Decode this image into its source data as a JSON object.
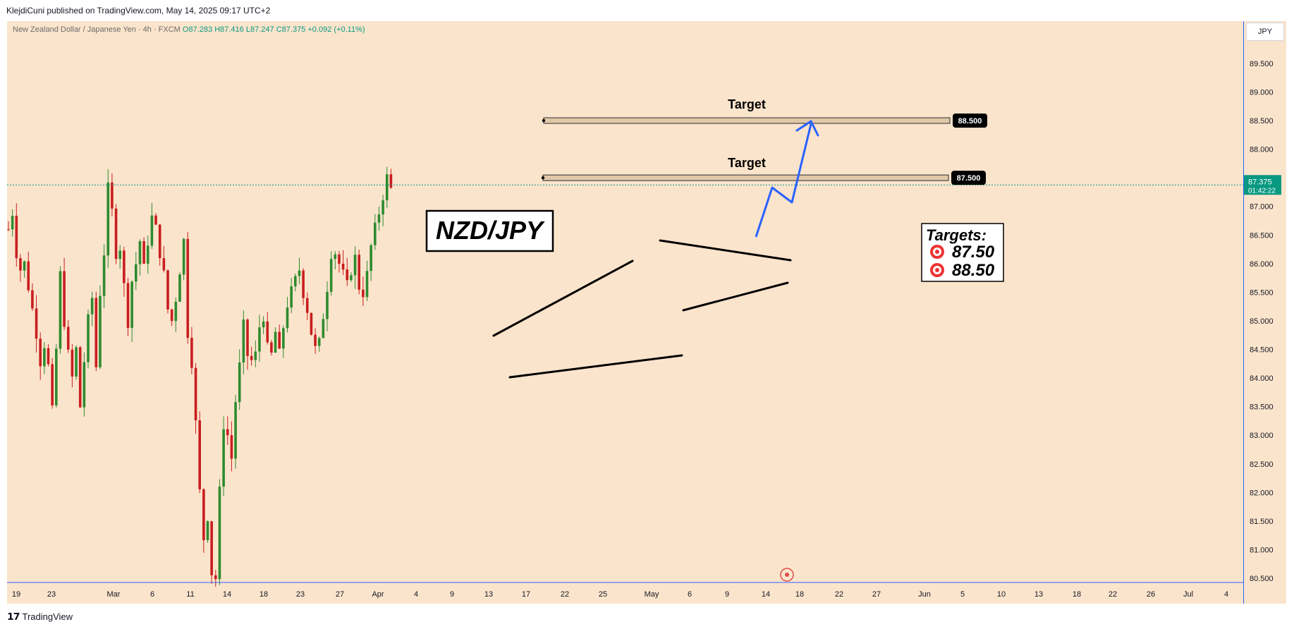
{
  "header": {
    "published": "KlejdiCuni published on TradingView.com, May 14, 2025 09:17 UTC+2"
  },
  "legend": {
    "symbol": "New Zealand Dollar / Japanese Yen · 4h · FXCM",
    "o_label": "O",
    "o": "87.283",
    "h_label": "H",
    "h": "87.416",
    "l_label": "L",
    "l": "87.247",
    "c_label": "C",
    "c": "87.375",
    "change": "+0.092 (+0.11%)"
  },
  "price_axis": {
    "currency": "JPY",
    "current_price": "87.375",
    "countdown": "01:42:22"
  },
  "annotations": {
    "title": "NZD/JPY",
    "target_label": "Target",
    "targets_header": "Targets:",
    "target_1": "87.50",
    "target_2": "88.50",
    "target_1_tag": "87.500",
    "target_2_tag": "88.500"
  },
  "footer": {
    "brand": "TradingView"
  },
  "colors": {
    "background": "#fbe4cc",
    "up_candle": "#2e8b2e",
    "down_candle": "#c81e1e",
    "projection": "#2962ff",
    "current_price": "#089981"
  },
  "chart_data": {
    "type": "candlestick",
    "title": "NZD/JPY",
    "symbol": "New Zealand Dollar / Japanese Yen",
    "timeframe": "4h",
    "ylim": [
      80.3,
      90.1
    ],
    "y_ticks": [
      "89.500",
      "89.000",
      "88.500",
      "88.000",
      "87.500",
      "87.000",
      "86.500",
      "86.000",
      "85.500",
      "85.000",
      "84.500",
      "84.000",
      "83.500",
      "83.000",
      "82.500",
      "82.000",
      "81.500",
      "81.000",
      "80.500"
    ],
    "x_ticks": [
      "19",
      "23",
      "Mar",
      "6",
      "11",
      "14",
      "18",
      "23",
      "27",
      "Apr",
      "4",
      "9",
      "13",
      "17",
      "22",
      "25",
      "May",
      "6",
      "9",
      "14",
      "18",
      "22",
      "27",
      "Jun",
      "5",
      "10",
      "13",
      "18",
      "22",
      "26",
      "Jul",
      "4"
    ],
    "price_path": [
      [
        0,
        86.6
      ],
      [
        3,
        86.9
      ],
      [
        6,
        86.2
      ],
      [
        8,
        85.9
      ],
      [
        10,
        86.0
      ],
      [
        12,
        85.6
      ],
      [
        14,
        85.2
      ],
      [
        16,
        84.8
      ],
      [
        18,
        84.3
      ],
      [
        20,
        84.6
      ],
      [
        22,
        84.2
      ],
      [
        24,
        83.4
      ],
      [
        26,
        84.5
      ],
      [
        28,
        85.8
      ],
      [
        30,
        85.0
      ],
      [
        32,
        84.4
      ],
      [
        34,
        84.0
      ],
      [
        36,
        84.5
      ],
      [
        38,
        83.5
      ],
      [
        40,
        84.3
      ],
      [
        42,
        85.0
      ],
      [
        44,
        85.4
      ],
      [
        46,
        84.2
      ],
      [
        48,
        85.5
      ],
      [
        50,
        86.2
      ],
      [
        52,
        87.3
      ],
      [
        54,
        86.9
      ],
      [
        56,
        86.2
      ],
      [
        58,
        86.3
      ],
      [
        60,
        85.6
      ],
      [
        62,
        85.0
      ],
      [
        64,
        85.7
      ],
      [
        66,
        86.0
      ],
      [
        68,
        86.4
      ],
      [
        70,
        85.9
      ],
      [
        72,
        86.4
      ],
      [
        74,
        86.8
      ],
      [
        76,
        86.6
      ],
      [
        78,
        86.2
      ],
      [
        80,
        85.8
      ],
      [
        82,
        85.2
      ],
      [
        84,
        85.0
      ],
      [
        86,
        85.4
      ],
      [
        88,
        85.9
      ],
      [
        90,
        86.4
      ],
      [
        92,
        84.8
      ],
      [
        94,
        84.3
      ],
      [
        96,
        83.2
      ],
      [
        98,
        82.0
      ],
      [
        100,
        81.2
      ],
      [
        102,
        81.6
      ],
      [
        104,
        80.6
      ],
      [
        106,
        80.5
      ],
      [
        108,
        82.0
      ],
      [
        110,
        83.2
      ],
      [
        112,
        83.0
      ],
      [
        114,
        82.6
      ],
      [
        116,
        83.6
      ],
      [
        118,
        84.2
      ],
      [
        120,
        84.9
      ],
      [
        122,
        84.4
      ],
      [
        124,
        84.3
      ],
      [
        126,
        84.4
      ],
      [
        128,
        84.9
      ],
      [
        130,
        85.1
      ],
      [
        132,
        84.5
      ],
      [
        134,
        84.4
      ],
      [
        136,
        84.8
      ],
      [
        138,
        84.4
      ],
      [
        140,
        84.9
      ],
      [
        142,
        85.3
      ],
      [
        144,
        85.5
      ],
      [
        146,
        85.7
      ],
      [
        148,
        85.9
      ],
      [
        150,
        85.5
      ],
      [
        152,
        85.2
      ],
      [
        154,
        84.8
      ],
      [
        156,
        84.5
      ],
      [
        158,
        84.6
      ],
      [
        160,
        85.1
      ],
      [
        162,
        85.6
      ],
      [
        164,
        86.2
      ],
      [
        166,
        86.2
      ],
      [
        168,
        86.0
      ],
      [
        170,
        85.8
      ],
      [
        172,
        85.6
      ],
      [
        174,
        85.9
      ],
      [
        176,
        86.1
      ],
      [
        178,
        85.6
      ],
      [
        180,
        85.5
      ],
      [
        182,
        85.8
      ],
      [
        184,
        86.3
      ],
      [
        186,
        86.6
      ],
      [
        188,
        86.9
      ],
      [
        190,
        87.2
      ],
      [
        192,
        87.5
      ],
      [
        194,
        87.3
      ]
    ],
    "trendlines": [
      {
        "name": "channel-upper-1",
        "points": [
          [
            "Apr 15",
            84.95
          ],
          [
            "Apr 28",
            86.05
          ]
        ]
      },
      {
        "name": "channel-lower-1",
        "points": [
          [
            "Apr 16",
            84.05
          ],
          [
            "May 3",
            84.4
          ]
        ]
      },
      {
        "name": "triangle-upper",
        "points": [
          [
            "May 4",
            86.42
          ],
          [
            "May 17",
            86.05
          ]
        ]
      },
      {
        "name": "triangle-lower",
        "points": [
          [
            "May 5",
            85.2
          ],
          [
            "May 17",
            85.7
          ]
        ]
      }
    ],
    "target_zones": [
      {
        "label": "Target",
        "value": 88.5
      },
      {
        "label": "Target",
        "value": 87.5
      }
    ],
    "projection_path": [
      [
        87.375
      ],
      [
        86.5
      ],
      [
        87.3
      ],
      [
        87.05
      ],
      [
        88.5
      ]
    ],
    "current_price": 87.375
  }
}
